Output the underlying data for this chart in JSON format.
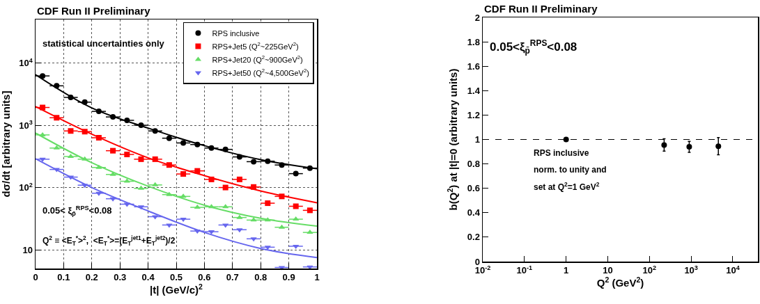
{
  "chart_data": [
    {
      "type": "scatter",
      "title": "CDF Run II Preliminary",
      "xlabel": "|t| (GeV/c)$^{2}$",
      "ylabel": "dσ/dt [arbitrary units]",
      "log": "y",
      "grid": true,
      "legend": "top right",
      "xlim": [
        0,
        1
      ],
      "xticks": [
        0,
        0.1,
        0.2,
        0.3,
        0.4,
        0.5,
        0.6,
        0.7,
        0.8,
        0.9,
        1
      ],
      "ylim": [
        5,
        50000
      ],
      "yticks": [
        10,
        {
          "value": 100,
          "label": "10$^{2}$"
        },
        {
          "value": 1000,
          "label": "10$^{3}$"
        },
        {
          "value": 10000,
          "label": "10$^{4}$"
        }
      ],
      "annotations": [
        "statistical uncertainties only",
        "0.05< ξ$_{p̄}$$^{RPS}$<0.08",
        "Q$^{2}$ ≡ <E$_{T}$$^{*}$>$^{2}$,  <E$_{T}$$^{*}$>=(E$_{T}$$^{jet1}$+E$_{T}$$^{jet2}$)/2"
      ],
      "series": [
        {
          "name": "RPS inclusive",
          "color": "#000000",
          "marker": "circle",
          "x": [
            0.025,
            0.075,
            0.125,
            0.175,
            0.225,
            0.275,
            0.325,
            0.375,
            0.425,
            0.475,
            0.525,
            0.575,
            0.625,
            0.675,
            0.725,
            0.775,
            0.825,
            0.875,
            0.925,
            0.975
          ],
          "values": [
            6200,
            4300,
            2800,
            2350,
            1670,
            1360,
            1200,
            1000,
            810,
            620,
            520,
            490,
            430,
            410,
            310,
            260,
            265,
            230,
            167,
            205
          ],
          "xerrors": [
            0.025,
            0.025,
            0.025,
            0.025,
            0.025,
            0.025,
            0.025,
            0.025,
            0.025,
            0.025,
            0.025,
            0.025,
            0.025,
            0.025,
            0.025,
            0.025,
            0.025,
            0.025,
            0.025,
            0.025
          ]
        },
        {
          "name": "RPS+Jet5 (Q$^{2}$~225GeV$^{2}$)",
          "color": "#ff0000",
          "marker": "square",
          "x": [
            0.025,
            0.075,
            0.125,
            0.175,
            0.225,
            0.275,
            0.325,
            0.375,
            0.425,
            0.475,
            0.525,
            0.575,
            0.625,
            0.675,
            0.725,
            0.775,
            0.825,
            0.875,
            0.925,
            0.975
          ],
          "values": [
            1930,
            1320,
            810,
            790,
            630,
            390,
            340,
            285,
            285,
            230,
            165,
            185,
            135,
            100,
            135,
            102,
            56,
            72,
            50,
            43
          ],
          "xerrors": [
            0.025,
            0.025,
            0.025,
            0.025,
            0.025,
            0.025,
            0.025,
            0.025,
            0.025,
            0.025,
            0.025,
            0.025,
            0.025,
            0.025,
            0.025,
            0.025,
            0.025,
            0.025,
            0.025,
            0.025
          ]
        },
        {
          "name": "RPS+Jet20 (Q$^{2}$~900GeV$^{2}$)",
          "color": "#66dd66",
          "marker": "triangle",
          "x": [
            0.025,
            0.075,
            0.125,
            0.175,
            0.225,
            0.275,
            0.325,
            0.375,
            0.425,
            0.475,
            0.525,
            0.575,
            0.625,
            0.675,
            0.725,
            0.775,
            0.825,
            0.875,
            0.925,
            0.975
          ],
          "values": [
            700,
            430,
            315,
            285,
            210,
            162,
            126,
            97,
            110,
            77,
            72,
            48,
            49,
            49,
            33,
            30,
            30,
            23,
            31,
            19
          ],
          "xerrors": [
            0.025,
            0.025,
            0.025,
            0.025,
            0.025,
            0.025,
            0.025,
            0.025,
            0.025,
            0.025,
            0.025,
            0.025,
            0.025,
            0.025,
            0.025,
            0.025,
            0.025,
            0.025,
            0.025,
            0.025
          ]
        },
        {
          "name": "RPS+Jet50 (Q$^{2}$~4,500GeV$^{2}$)",
          "color": "#6666ee",
          "marker": "triangle-down",
          "x": [
            0.025,
            0.075,
            0.125,
            0.175,
            0.225,
            0.275,
            0.325,
            0.375,
            0.425,
            0.475,
            0.525,
            0.575,
            0.625,
            0.675,
            0.725,
            0.775,
            0.825,
            0.875,
            0.925,
            0.975
          ],
          "values": [
            285,
            195,
            147,
            109,
            81,
            66,
            54,
            49,
            34,
            25,
            31,
            20,
            19.5,
            25,
            21,
            15,
            11,
            5.2,
            11.4,
            5.3
          ],
          "xerrors": [
            0.025,
            0.025,
            0.025,
            0.025,
            0.025,
            0.025,
            0.025,
            0.025,
            0.025,
            0.025,
            0.025,
            0.025,
            0.025,
            0.025,
            0.025,
            0.025,
            0.025,
            0.025,
            0.025,
            0.025
          ]
        },
        {
          "type": "line",
          "color": "#000000",
          "x": [
            0,
            0.2,
            0.4,
            0.6,
            0.8,
            1
          ],
          "values": [
            6500,
            1900,
            900,
            470,
            280,
            200
          ]
        },
        {
          "type": "line",
          "color": "#ff0000",
          "x": [
            0,
            0.2,
            0.4,
            0.6,
            0.8,
            1
          ],
          "values": [
            2000,
            720,
            300,
            155,
            88,
            57
          ]
        },
        {
          "type": "line",
          "color": "#66dd66",
          "x": [
            0,
            0.2,
            0.4,
            0.6,
            0.8,
            1
          ],
          "values": [
            750,
            250,
            105,
            52,
            32,
            24
          ]
        },
        {
          "type": "line",
          "color": "#6666ee",
          "x": [
            0,
            0.2,
            0.4,
            0.6,
            0.8,
            1
          ],
          "values": [
            290,
            100,
            42,
            19,
            10.5,
            7.5
          ]
        }
      ]
    },
    {
      "type": "scatter",
      "title": "CDF Run II Preliminary",
      "xlabel": "Q$^{2}$ (GeV$^{2}$)",
      "ylabel": "b(Q$^{2}$) at |t|=0 (arbitrary units)",
      "log": "x",
      "legend": false,
      "xlim": [
        0.01,
        40000
      ],
      "xticks": [
        {
          "value": 0.01,
          "label": "10$^{-2}$"
        },
        {
          "value": 0.1,
          "label": "10$^{-1}$"
        },
        1,
        10,
        {
          "value": 100,
          "label": "10$^{2}$"
        },
        {
          "value": 1000,
          "label": "10$^{3}$"
        },
        {
          "value": 10000,
          "label": "10$^{4}$"
        }
      ],
      "ylim": [
        0,
        2
      ],
      "yticks": [
        0,
        0.2,
        0.4,
        0.6,
        0.8,
        1,
        1.2,
        1.4,
        1.6,
        1.8,
        2
      ],
      "annotations": [
        "0.05<ξ$_{p̄}$$^{RPS}$<0.08",
        "RPS inclusive",
        "norm. to unity and",
        "set at Q$^{2}$=1 GeV$^{2}$"
      ],
      "ref_lines": [
        {
          "axis": "y",
          "value": 1,
          "line_style": "dashed",
          "color": "#000000"
        }
      ],
      "series": [
        {
          "color": "#000000",
          "marker": "circle",
          "x": [
            1,
            225,
            900,
            4500
          ],
          "values": [
            1,
            0.955,
            0.94,
            0.945
          ],
          "errors": [
            null,
            0.05,
            0.045,
            0.07
          ]
        }
      ]
    }
  ]
}
